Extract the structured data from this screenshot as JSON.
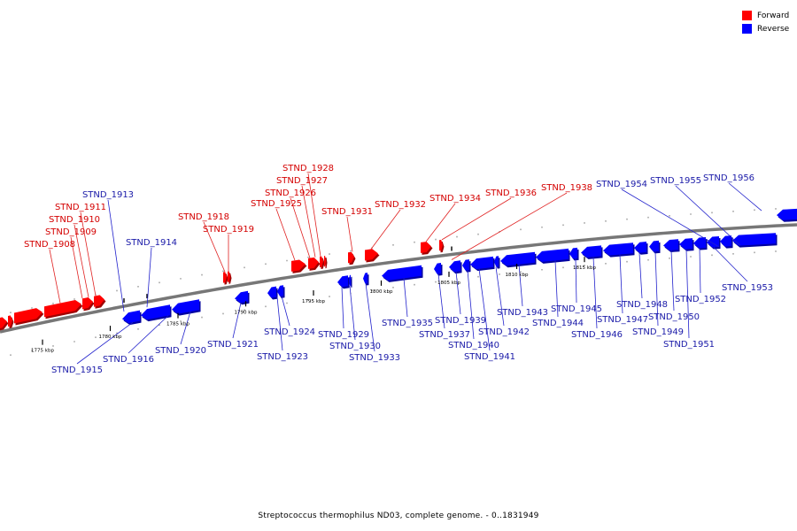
{
  "caption": "Streptococcus thermophilus ND03, complete genome. - 0..1831949",
  "legend": [
    {
      "label": "Forward",
      "color": "#ff0000"
    },
    {
      "label": "Reverse",
      "color": "#0000ff"
    }
  ],
  "colors": {
    "forward": "#ff0000",
    "reverse": "#0000ff",
    "forward_text": "#d40000",
    "reverse_text": "#1a1aa8",
    "backbone": "#777777"
  },
  "scale_labels": [
    {
      "text": "1775 kbp",
      "kbp": 1775
    },
    {
      "text": "1780 kbp",
      "kbp": 1780
    },
    {
      "text": "1785 kbp",
      "kbp": 1785
    },
    {
      "text": "1790 kbp",
      "kbp": 1790
    },
    {
      "text": "1795 kbp",
      "kbp": 1795
    },
    {
      "text": "1800 kbp",
      "kbp": 1800
    },
    {
      "text": "1805 kbp",
      "kbp": 1805
    },
    {
      "text": "1810 kbp",
      "kbp": 1810
    },
    {
      "text": "1815 kbp",
      "kbp": 1815
    }
  ],
  "genes": [
    {
      "name": "STND_1908",
      "strand": "forward"
    },
    {
      "name": "STND_1909",
      "strand": "forward"
    },
    {
      "name": "STND_1910",
      "strand": "forward"
    },
    {
      "name": "STND_1911",
      "strand": "forward"
    },
    {
      "name": "STND_1913",
      "strand": "reverse"
    },
    {
      "name": "STND_1914",
      "strand": "reverse"
    },
    {
      "name": "STND_1915",
      "strand": "reverse"
    },
    {
      "name": "STND_1916",
      "strand": "reverse"
    },
    {
      "name": "STND_1918",
      "strand": "forward"
    },
    {
      "name": "STND_1919",
      "strand": "forward"
    },
    {
      "name": "STND_1920",
      "strand": "reverse"
    },
    {
      "name": "STND_1921",
      "strand": "reverse"
    },
    {
      "name": "STND_1923",
      "strand": "reverse"
    },
    {
      "name": "STND_1924",
      "strand": "reverse"
    },
    {
      "name": "STND_1925",
      "strand": "forward"
    },
    {
      "name": "STND_1926",
      "strand": "forward"
    },
    {
      "name": "STND_1927",
      "strand": "forward"
    },
    {
      "name": "STND_1928",
      "strand": "forward"
    },
    {
      "name": "STND_1929",
      "strand": "reverse"
    },
    {
      "name": "STND_1930",
      "strand": "reverse"
    },
    {
      "name": "STND_1931",
      "strand": "forward"
    },
    {
      "name": "STND_1932",
      "strand": "forward"
    },
    {
      "name": "STND_1933",
      "strand": "reverse"
    },
    {
      "name": "STND_1934",
      "strand": "forward"
    },
    {
      "name": "STND_1935",
      "strand": "reverse"
    },
    {
      "name": "STND_1936",
      "strand": "forward"
    },
    {
      "name": "STND_1937",
      "strand": "reverse"
    },
    {
      "name": "STND_1938",
      "strand": "forward"
    },
    {
      "name": "STND_1939",
      "strand": "reverse"
    },
    {
      "name": "STND_1940",
      "strand": "reverse"
    },
    {
      "name": "STND_1941",
      "strand": "reverse"
    },
    {
      "name": "STND_1942",
      "strand": "reverse"
    },
    {
      "name": "STND_1943",
      "strand": "reverse"
    },
    {
      "name": "STND_1944",
      "strand": "reverse"
    },
    {
      "name": "STND_1945",
      "strand": "reverse"
    },
    {
      "name": "STND_1946",
      "strand": "reverse"
    },
    {
      "name": "STND_1947",
      "strand": "reverse"
    },
    {
      "name": "STND_1948",
      "strand": "reverse"
    },
    {
      "name": "STND_1949",
      "strand": "reverse"
    },
    {
      "name": "STND_1950",
      "strand": "reverse"
    },
    {
      "name": "STND_1951",
      "strand": "reverse"
    },
    {
      "name": "STND_1952",
      "strand": "reverse"
    },
    {
      "name": "STND_1953",
      "strand": "reverse"
    },
    {
      "name": "STND_1954",
      "strand": "reverse"
    },
    {
      "name": "STND_1955",
      "strand": "reverse"
    },
    {
      "name": "STND_1956",
      "strand": "reverse"
    }
  ]
}
